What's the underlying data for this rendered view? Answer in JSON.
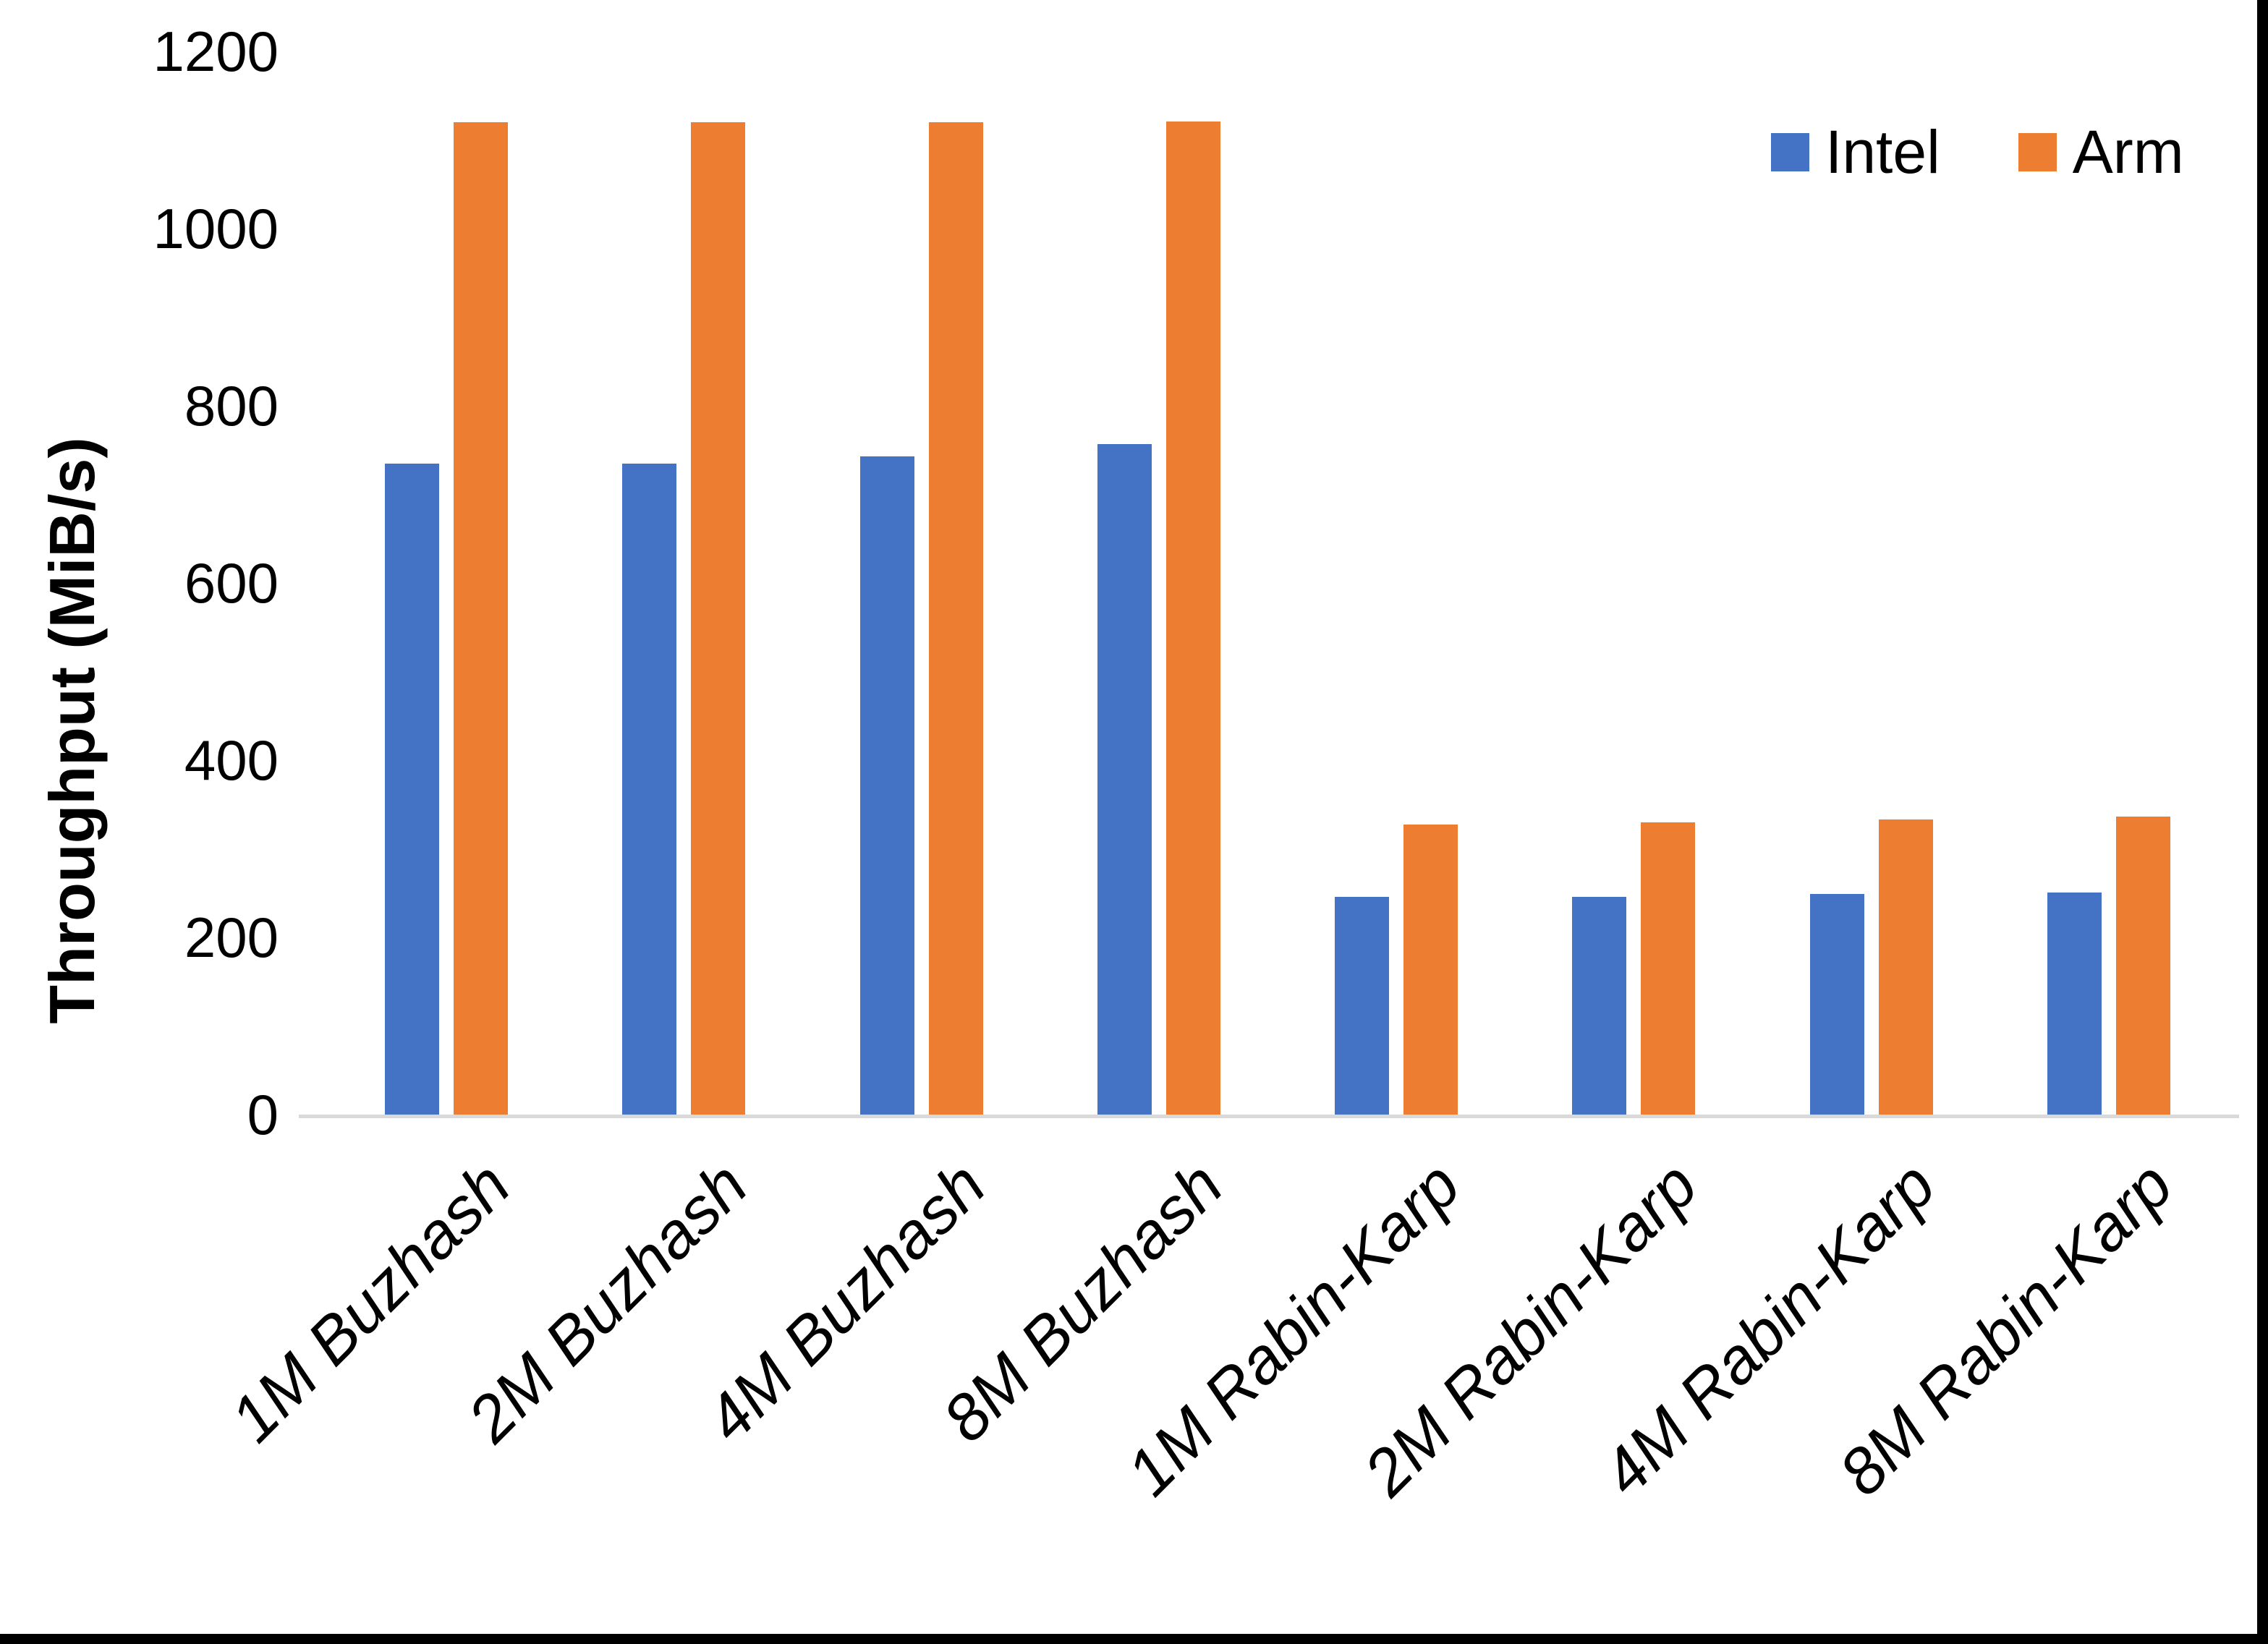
{
  "chart_data": {
    "type": "bar",
    "categories": [
      "1M Buzhash",
      "2M Buzhash",
      "4M Buzhash",
      "8M Buzhash",
      "1M Rabin-Karp",
      "2M Rabin-Karp",
      "4M Rabin-Karp",
      "8M Rabin-Karp"
    ],
    "series": [
      {
        "name": "Intel",
        "color": "#4472C4",
        "values": [
          735,
          735,
          743,
          757,
          246,
          246,
          249,
          251
        ]
      },
      {
        "name": "Arm",
        "color": "#ED7D31",
        "values": [
          1120,
          1120,
          1120,
          1121,
          327,
          330,
          333,
          336
        ]
      }
    ],
    "title": "",
    "xlabel": "",
    "ylabel": "Throughput (MiB/s)",
    "ylim": [
      0,
      1200
    ],
    "yticks": [
      0,
      200,
      400,
      600,
      800,
      1000,
      1200
    ],
    "grid": false,
    "legend_position": "top-right"
  },
  "colors": {
    "intel": "#4472C4",
    "arm": "#ED7D31",
    "axis_line": "#D9D9D9",
    "text": "#000000",
    "background": "#FFFFFF",
    "screenshot_border": "#000000"
  }
}
